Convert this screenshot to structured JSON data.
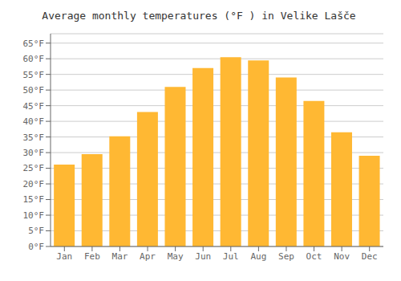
{
  "chart_data": {
    "type": "bar",
    "title": "Average monthly temperatures (°F ) in Velike Lašče",
    "categories": [
      "Jan",
      "Feb",
      "Mar",
      "Apr",
      "May",
      "Jun",
      "Jul",
      "Aug",
      "Sep",
      "Oct",
      "Nov",
      "Dec"
    ],
    "values": [
      26.2,
      29.5,
      35.2,
      43.0,
      51.0,
      57.0,
      60.5,
      59.5,
      54.0,
      46.5,
      36.5,
      29.0
    ],
    "color": "#FFB833",
    "ylim": [
      0,
      68
    ],
    "yticks": [
      {
        "value": 0,
        "label": "0°F"
      },
      {
        "value": 5,
        "label": "5°F"
      },
      {
        "value": 10,
        "label": "10°F"
      },
      {
        "value": 15,
        "label": "15°F"
      },
      {
        "value": 20,
        "label": "20°F"
      },
      {
        "value": 25,
        "label": "25°F"
      },
      {
        "value": 30,
        "label": "30°F"
      },
      {
        "value": 35,
        "label": "35°F"
      },
      {
        "value": 40,
        "label": "40°F"
      },
      {
        "value": 45,
        "label": "45°F"
      },
      {
        "value": 50,
        "label": "50°F"
      },
      {
        "value": 55,
        "label": "55°F"
      },
      {
        "value": 60,
        "label": "60°F"
      },
      {
        "value": 65,
        "label": "65°F"
      }
    ],
    "grid": true
  }
}
